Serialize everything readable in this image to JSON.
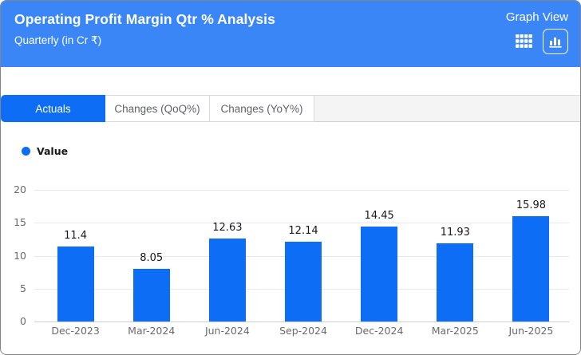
{
  "header": {
    "title": "Operating Profit Margin Qtr % Analysis",
    "subtitle": "Quarterly (in Cr ₹)",
    "view_label": "Graph View",
    "view_toggle": {
      "table_icon": "table-view-icon",
      "graph_icon": "bar-chart-view-icon",
      "selected": "graph"
    }
  },
  "tabs": [
    {
      "label": "Actuals",
      "active": true
    },
    {
      "label": "Changes (QoQ%)",
      "active": false
    },
    {
      "label": "Changes (YoY%)",
      "active": false
    }
  ],
  "legend": {
    "label": "Value",
    "color": "#0d6ef5"
  },
  "chart_data": {
    "type": "bar",
    "title": "",
    "xlabel": "",
    "ylabel": "",
    "series_name": "Value",
    "categories": [
      "Dec-2023",
      "Mar-2024",
      "Jun-2024",
      "Sep-2024",
      "Dec-2024",
      "Mar-2025",
      "Jun-2025"
    ],
    "values": [
      11.4,
      8.05,
      12.63,
      12.14,
      14.45,
      11.93,
      15.98
    ],
    "ylim": [
      0,
      20
    ],
    "yticks": [
      0,
      5,
      10,
      15,
      20
    ],
    "grid": true,
    "data_labels": true,
    "legend_position": "top-left",
    "bar_color": "#0d6ef5"
  },
  "colors": {
    "header_bg": "#3b86f7",
    "accent_blue": "#0d6ef5",
    "tab_inactive_text": "#5f6368",
    "axis_text": "#6a6a6a",
    "gridline": "#e9e9e9"
  }
}
